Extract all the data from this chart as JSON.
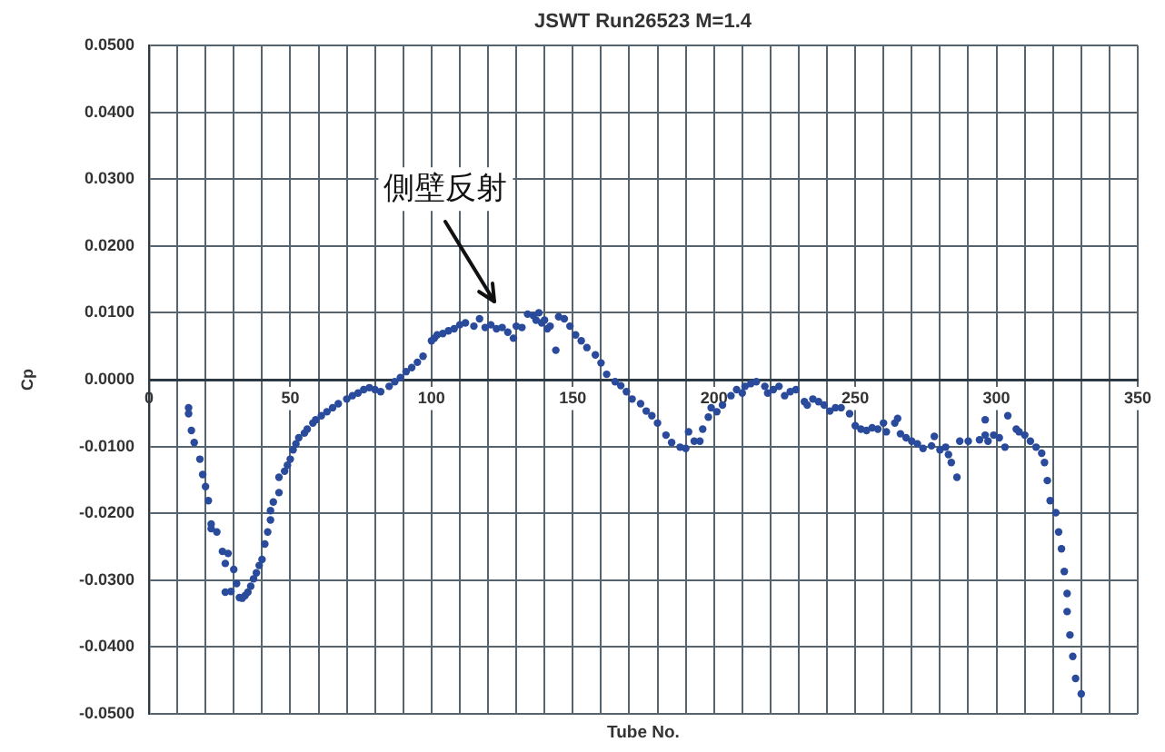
{
  "chart_data": {
    "type": "scatter",
    "title": "JSWT Run26523 M=1.4",
    "xlabel": "Tube No.",
    "ylabel": "Cp",
    "annotations": [
      "側壁反射"
    ],
    "x": [
      14,
      14,
      15,
      16,
      18,
      19,
      20,
      21,
      22,
      22,
      24,
      26,
      27,
      28,
      27,
      29,
      30,
      31,
      32,
      33,
      34,
      35,
      36,
      37,
      38,
      39,
      40,
      41,
      42,
      43,
      43,
      44,
      46,
      46,
      48,
      49,
      50,
      51,
      52,
      53,
      55,
      56,
      58,
      59,
      61,
      63,
      65,
      67,
      70,
      72,
      74,
      76,
      78,
      80,
      82,
      85,
      87,
      89,
      91,
      93,
      95,
      97,
      100,
      101,
      102,
      104,
      106,
      108,
      110,
      112,
      115,
      117,
      119,
      121,
      123,
      125,
      127,
      129,
      130,
      132,
      134,
      136,
      137,
      138,
      139,
      140,
      141,
      142,
      144,
      145,
      147,
      149,
      151,
      153,
      155,
      158,
      160,
      162,
      165,
      167,
      169,
      171,
      174,
      176,
      178,
      180,
      183,
      185,
      188,
      190,
      191,
      193,
      195,
      196,
      198,
      199,
      201,
      203,
      206,
      208,
      210,
      211,
      213,
      215,
      218,
      219,
      221,
      223,
      225,
      227,
      229,
      232,
      233,
      235,
      237,
      239,
      241,
      243,
      245,
      248,
      250,
      252,
      254,
      256,
      258,
      260,
      261,
      264,
      265,
      266,
      268,
      270,
      272,
      274,
      277,
      278,
      280,
      282,
      283,
      284,
      286,
      287,
      290,
      294,
      296,
      296,
      297,
      299,
      301,
      303,
      304,
      307,
      308,
      310,
      312,
      314,
      316,
      317,
      318,
      319,
      321,
      322,
      323,
      324,
      325,
      325,
      326,
      327,
      328,
      330
    ],
    "values": [
      -0.0042,
      -0.0051,
      -0.0076,
      -0.0094,
      -0.0119,
      -0.0142,
      -0.016,
      -0.0181,
      -0.0216,
      -0.0223,
      -0.0228,
      -0.0257,
      -0.0275,
      -0.026,
      -0.0318,
      -0.0317,
      -0.0284,
      -0.0305,
      -0.0326,
      -0.0327,
      -0.0323,
      -0.0318,
      -0.0309,
      -0.0298,
      -0.0289,
      -0.0278,
      -0.0269,
      -0.0246,
      -0.0228,
      -0.021,
      -0.0196,
      -0.0183,
      -0.0169,
      -0.0146,
      -0.0137,
      -0.0128,
      -0.0119,
      -0.0105,
      -0.0096,
      -0.0087,
      -0.008,
      -0.0074,
      -0.0065,
      -0.006,
      -0.0054,
      -0.0048,
      -0.0042,
      -0.0036,
      -0.0029,
      -0.0024,
      -0.002,
      -0.0015,
      -0.0012,
      -0.0015,
      -0.0018,
      -0.001,
      -0.0003,
      0.0003,
      0.0012,
      0.0018,
      0.0026,
      0.0035,
      0.0058,
      0.0062,
      0.0067,
      0.0069,
      0.0073,
      0.0076,
      0.0082,
      0.0085,
      0.008,
      0.0091,
      0.0078,
      0.0082,
      0.0076,
      0.0078,
      0.0071,
      0.0062,
      0.008,
      0.0078,
      0.0098,
      0.0096,
      0.0089,
      0.01,
      0.0085,
      0.0089,
      0.0076,
      0.008,
      0.0044,
      0.0094,
      0.0091,
      0.008,
      0.0067,
      0.0058,
      0.0048,
      0.0037,
      0.0025,
      0.0008,
      -0.0003,
      -0.0009,
      -0.0018,
      -0.0029,
      -0.0036,
      -0.0047,
      -0.0054,
      -0.0065,
      -0.0083,
      -0.0094,
      -0.0101,
      -0.0103,
      -0.0078,
      -0.0092,
      -0.0092,
      -0.0074,
      -0.0056,
      -0.0042,
      -0.0048,
      -0.0038,
      -0.0024,
      -0.0015,
      -0.002,
      -0.001,
      -0.0006,
      -0.0003,
      -0.001,
      -0.002,
      -0.0015,
      -0.001,
      -0.0024,
      -0.0018,
      -0.0015,
      -0.0033,
      -0.0038,
      -0.0029,
      -0.0033,
      -0.0038,
      -0.0047,
      -0.0042,
      -0.0042,
      -0.0051,
      -0.0069,
      -0.0074,
      -0.0076,
      -0.0072,
      -0.0074,
      -0.0065,
      -0.0078,
      -0.0065,
      -0.0058,
      -0.0081,
      -0.0087,
      -0.0092,
      -0.0096,
      -0.0103,
      -0.0099,
      -0.0085,
      -0.0105,
      -0.0101,
      -0.0112,
      -0.0124,
      -0.0146,
      -0.0092,
      -0.0092,
      -0.009,
      -0.0083,
      -0.006,
      -0.0092,
      -0.0083,
      -0.0087,
      -0.0101,
      -0.0054,
      -0.0074,
      -0.0078,
      -0.0083,
      -0.0092,
      -0.0101,
      -0.011,
      -0.0124,
      -0.0151,
      -0.0181,
      -0.0199,
      -0.0228,
      -0.0253,
      -0.0287,
      -0.032,
      -0.0347,
      -0.0382,
      -0.0414,
      -0.0447,
      -0.047
    ],
    "color": "#2a4b9b",
    "marker": "circle",
    "grid": true,
    "xlim": [
      0,
      350
    ],
    "xticks": [
      0,
      {
        "value": 10,
        "label": null
      },
      {
        "value": 20,
        "label": null
      },
      {
        "value": 30,
        "label": null
      },
      {
        "value": 40,
        "label": null
      },
      50,
      {
        "value": 60,
        "label": null
      },
      {
        "value": 70,
        "label": null
      },
      {
        "value": 80,
        "label": null
      },
      {
        "value": 90,
        "label": null
      },
      100,
      {
        "value": 110,
        "label": null
      },
      {
        "value": 120,
        "label": null
      },
      {
        "value": 130,
        "label": null
      },
      {
        "value": 140,
        "label": null
      },
      150,
      {
        "value": 160,
        "label": null
      },
      {
        "value": 170,
        "label": null
      },
      {
        "value": 180,
        "label": null
      },
      {
        "value": 190,
        "label": null
      },
      200,
      {
        "value": 210,
        "label": null
      },
      {
        "value": 220,
        "label": null
      },
      {
        "value": 230,
        "label": null
      },
      {
        "value": 240,
        "label": null
      },
      250,
      {
        "value": 260,
        "label": null
      },
      {
        "value": 270,
        "label": null
      },
      {
        "value": 280,
        "label": null
      },
      {
        "value": 290,
        "label": null
      },
      300,
      {
        "value": 310,
        "label": null
      },
      {
        "value": 320,
        "label": null
      },
      {
        "value": 330,
        "label": null
      },
      {
        "value": 340,
        "label": null
      },
      350
    ],
    "ylim": [
      -0.05,
      0.05
    ],
    "yticks": [
      {
        "value": -0.05,
        "label": "-0.0500"
      },
      {
        "value": -0.04,
        "label": "-0.0400"
      },
      {
        "value": -0.03,
        "label": "-0.0300"
      },
      {
        "value": -0.02,
        "label": "-0.0200"
      },
      {
        "value": -0.01,
        "label": "-0.0100"
      },
      {
        "value": 0,
        "label": "0.0000"
      },
      {
        "value": 0.01,
        "label": "0.0100"
      },
      {
        "value": 0.02,
        "label": "0.0200"
      },
      {
        "value": 0.03,
        "label": "0.0300"
      },
      {
        "value": 0.04,
        "label": "0.0400"
      },
      {
        "value": 0.05,
        "label": "0.0500"
      }
    ]
  }
}
